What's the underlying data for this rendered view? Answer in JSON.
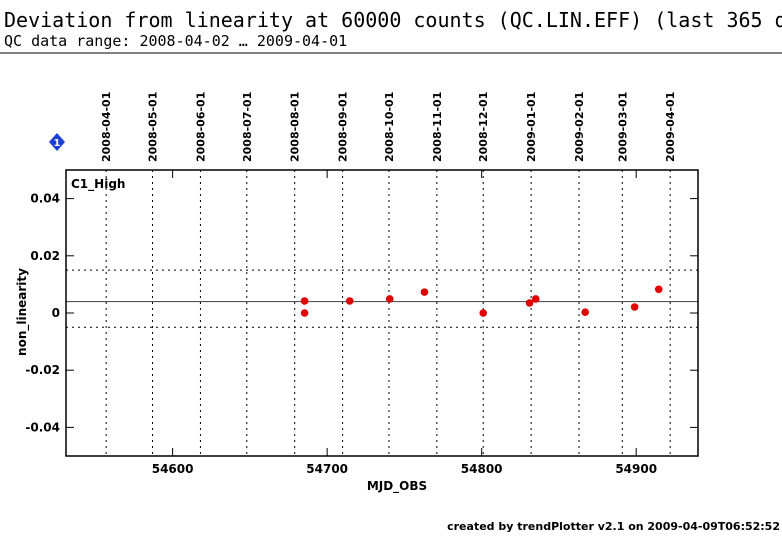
{
  "chart_data": {
    "type": "scatter",
    "title": "Deviation from linearity at 60000 counts (QC.LIN.EFF) (last 365 d",
    "subtitle": "QC data range: 2008-04-02 … 2009-04-01",
    "panel_label": "C1_High",
    "marker_label": "1",
    "x_label": "MJD_OBS",
    "y_label": "non_linearity",
    "footer": "created by trendPlotter v2.1 on 2009-04-09T06:52:52",
    "xlim": [
      54531,
      54940
    ],
    "ylim": [
      -0.05,
      0.05
    ],
    "xticks": [
      54600,
      54700,
      54800,
      54900
    ],
    "yticks": [
      -0.04,
      -0.02,
      0,
      0.02,
      0.04
    ],
    "date_ticks": [
      {
        "value": 54557,
        "label": "2008-04-01"
      },
      {
        "value": 54587,
        "label": "2008-05-01"
      },
      {
        "value": 54618,
        "label": "2008-06-01"
      },
      {
        "value": 54648,
        "label": "2008-07-01"
      },
      {
        "value": 54679,
        "label": "2008-08-01"
      },
      {
        "value": 54710,
        "label": "2008-09-01"
      },
      {
        "value": 54740,
        "label": "2008-10-01"
      },
      {
        "value": 54771,
        "label": "2008-11-01"
      },
      {
        "value": 54801,
        "label": "2008-12-01"
      },
      {
        "value": 54832,
        "label": "2009-01-01"
      },
      {
        "value": 54863,
        "label": "2009-02-01"
      },
      {
        "value": 54891,
        "label": "2009-03-01"
      },
      {
        "value": 54922,
        "label": "2009-04-01"
      }
    ],
    "mean_line": 0.004,
    "limit_lines": [
      0.015,
      -0.005
    ],
    "color": "#e00000",
    "x": [
      54685.4,
      54685.4,
      54714.6,
      54740.5,
      54763,
      54801,
      54831,
      54835,
      54867,
      54899,
      54914.6
    ],
    "values": [
      0.0042,
      0,
      0.0042,
      0.0049,
      0.0073,
      0,
      0.0035,
      0.0049,
      0.0003,
      0.0021,
      0.0083
    ]
  }
}
